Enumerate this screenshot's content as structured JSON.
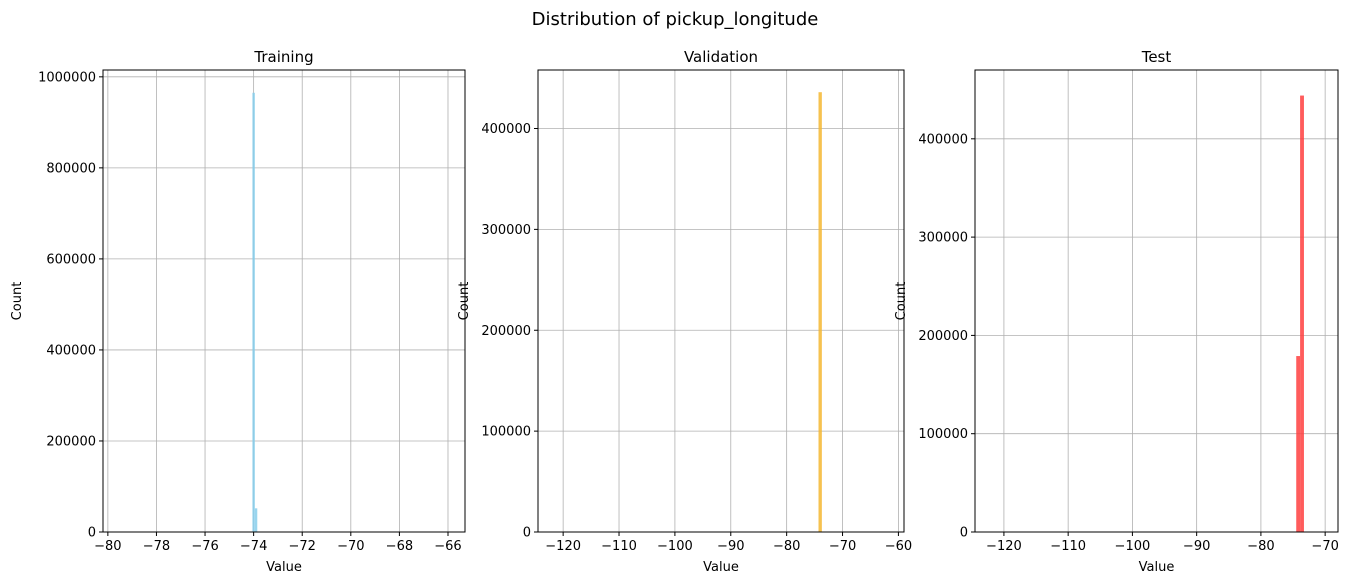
{
  "figure": {
    "title": "Distribution of pickup_longitude"
  },
  "chart_data": [
    {
      "type": "bar",
      "title": "Training",
      "xlabel": "Value",
      "ylabel": "Count",
      "color": "#87CEEB",
      "grid": true,
      "xlim": [
        -80.2,
        -65.3
      ],
      "ylim": [
        0,
        1015000
      ],
      "xticks": [
        -80,
        -78,
        -76,
        -74,
        -72,
        -70,
        -68,
        -66
      ],
      "yticks": [
        0,
        200000,
        400000,
        600000,
        800000,
        1000000
      ],
      "bins": [
        {
          "x0": -74.05,
          "x1": -73.95,
          "value": 965000
        },
        {
          "x0": -73.95,
          "x1": -73.85,
          "value": 52000
        }
      ]
    },
    {
      "type": "bar",
      "title": "Validation",
      "xlabel": "Value",
      "ylabel": "Count",
      "color": "#F4B731",
      "grid": true,
      "xlim": [
        -124.5,
        -59
      ],
      "ylim": [
        0,
        458000
      ],
      "xticks": [
        -120,
        -110,
        -100,
        -90,
        -80,
        -70,
        -60
      ],
      "yticks": [
        0,
        100000,
        200000,
        300000,
        400000
      ],
      "bins": [
        {
          "x0": -74.3,
          "x1": -73.7,
          "value": 436000
        }
      ]
    },
    {
      "type": "bar",
      "title": "Test",
      "xlabel": "Value",
      "ylabel": "Count",
      "color": "#FF4040",
      "grid": true,
      "xlim": [
        -124.5,
        -68
      ],
      "ylim": [
        0,
        470000
      ],
      "xticks": [
        -120,
        -110,
        -100,
        -90,
        -80,
        -70
      ],
      "yticks": [
        0,
        100000,
        200000,
        300000,
        400000
      ],
      "bins": [
        {
          "x0": -74.5,
          "x1": -73.9,
          "value": 179000
        },
        {
          "x0": -73.9,
          "x1": -73.3,
          "value": 444000
        }
      ]
    }
  ]
}
